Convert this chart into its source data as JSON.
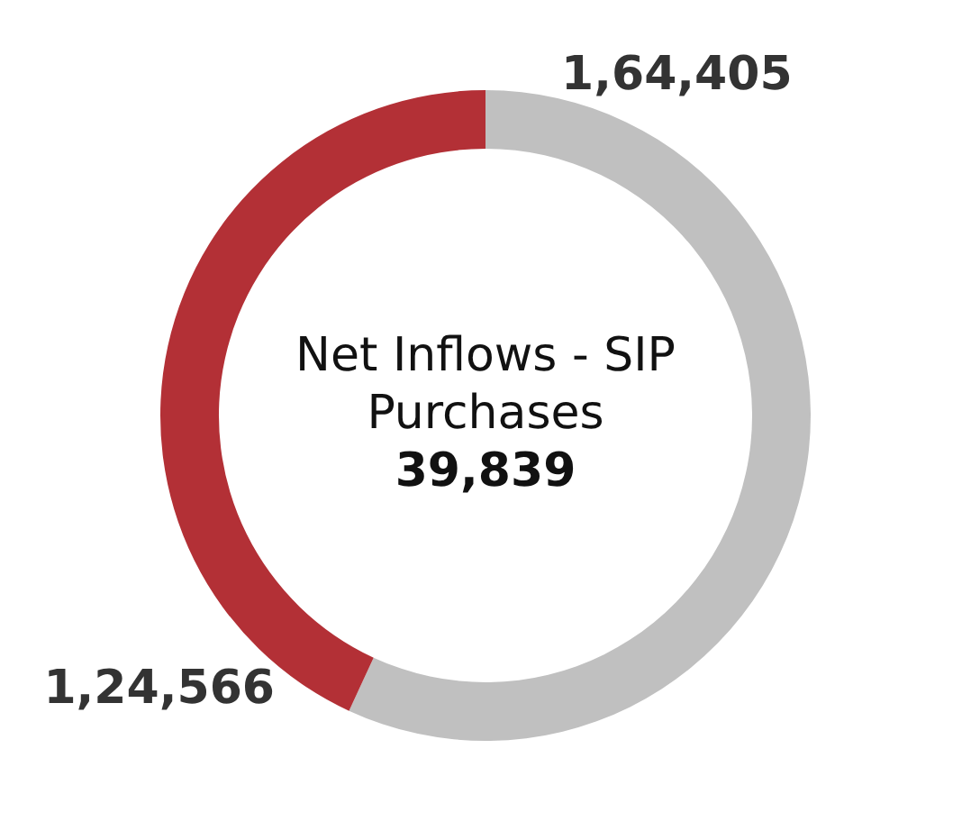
{
  "chart_data": {
    "type": "donut",
    "title": "Net Inflows - SIP Purchases",
    "annotations": [
      "39,839"
    ],
    "categories": [
      null,
      null
    ],
    "values": [
      164405,
      124566
    ],
    "colors": [
      "#c0c0c0",
      "#b33036"
    ],
    "value_labels": [
      "1,64,405",
      "1,24,566"
    ],
    "legend": false
  }
}
